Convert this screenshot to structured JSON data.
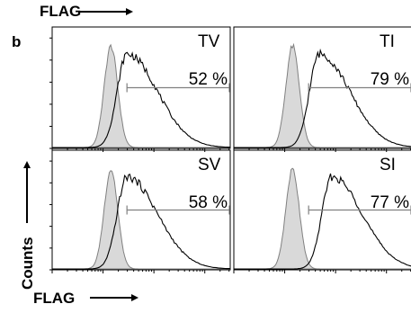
{
  "figure": {
    "panel_letter": "b",
    "top_axis_label": "FLAG",
    "bottom_axis_label": "FLAG",
    "y_axis_label": "Counts"
  },
  "chart_data": [
    {
      "type": "area",
      "panel": "TV",
      "label": "TV",
      "percent_text": "52 %",
      "percent_value": 52,
      "control_peak_x": 0.33,
      "sample_peak_x": 0.42,
      "gate_range": [
        0.42,
        1.0
      ]
    },
    {
      "type": "area",
      "panel": "TI",
      "label": "TI",
      "percent_text": "79 %",
      "percent_value": 79,
      "control_peak_x": 0.33,
      "sample_peak_x": 0.48,
      "gate_range": [
        0.42,
        1.0
      ]
    },
    {
      "type": "area",
      "panel": "SV",
      "label": "SV",
      "percent_text": "58 %",
      "percent_value": 58,
      "control_peak_x": 0.33,
      "sample_peak_x": 0.42,
      "gate_range": [
        0.42,
        1.0
      ]
    },
    {
      "type": "area",
      "panel": "SI",
      "label": "SI",
      "percent_text": "77 %",
      "percent_value": 77,
      "control_peak_x": 0.33,
      "sample_peak_x": 0.55,
      "gate_range": [
        0.42,
        1.0
      ]
    }
  ],
  "colors": {
    "axis": "#000000",
    "control_fill": "#d9d9d9",
    "control_stroke": "#808080",
    "sample_stroke": "#000000",
    "gate_line": "#808080"
  }
}
